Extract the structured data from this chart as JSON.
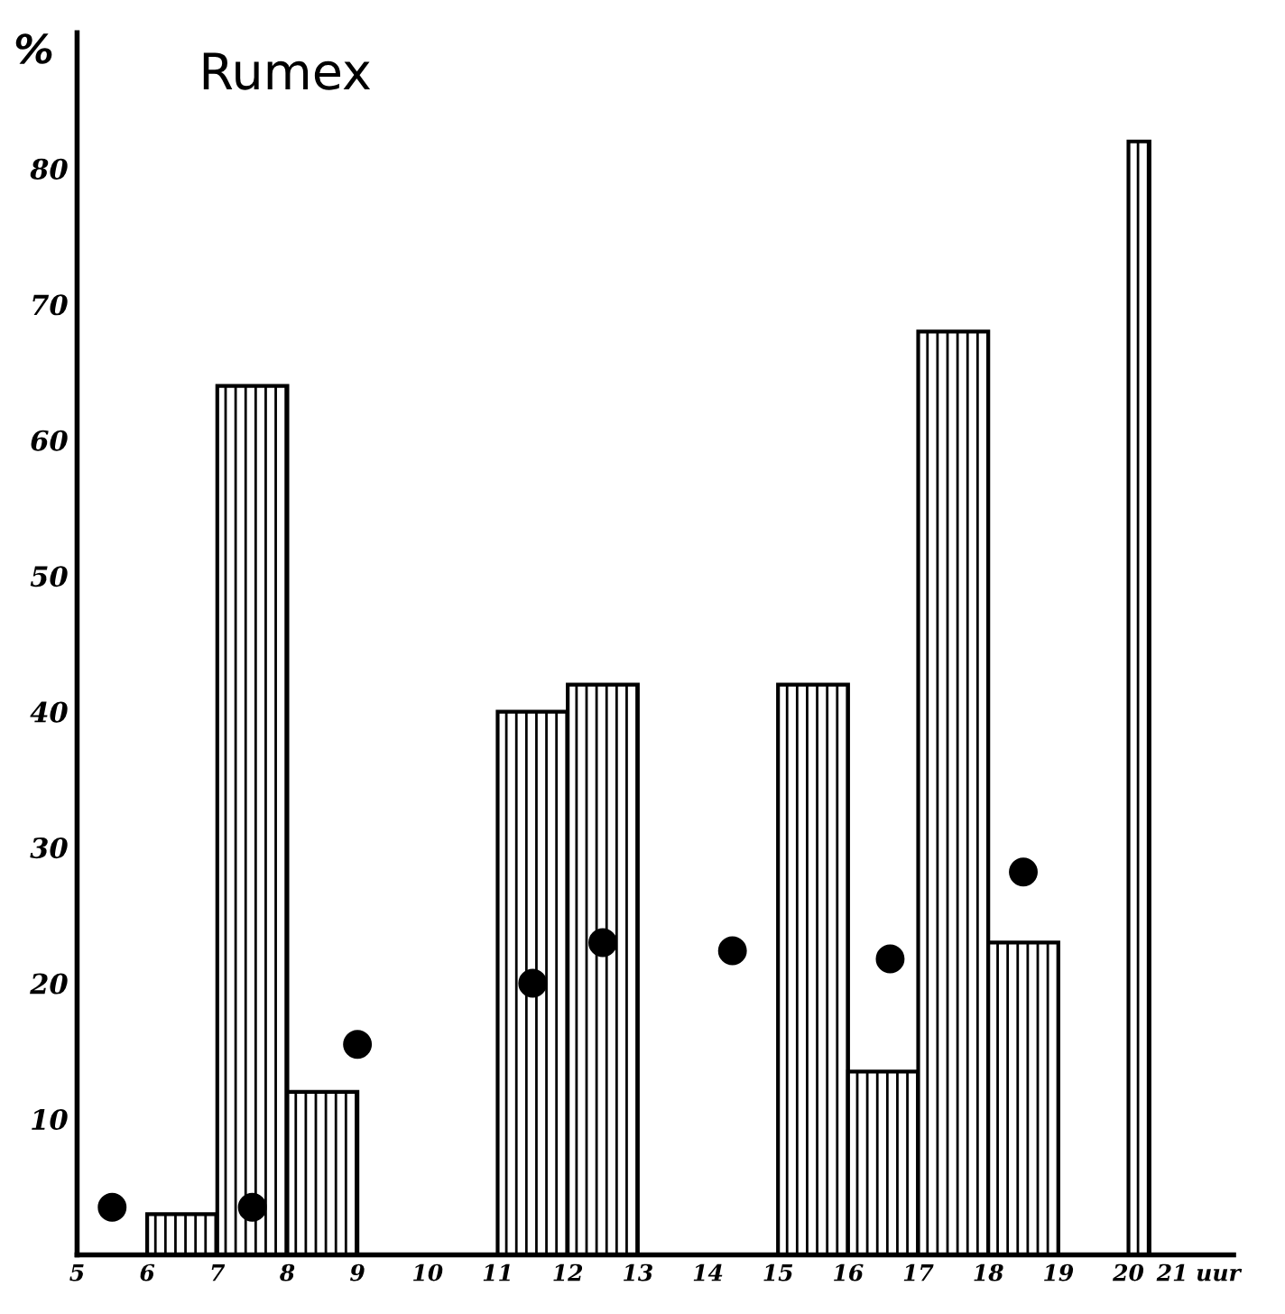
{
  "chart_data": {
    "type": "histogram",
    "title": "Rumex",
    "ylabel": "%",
    "bins": [
      6,
      7,
      8,
      9,
      11,
      12,
      13,
      15,
      16,
      17,
      18,
      19,
      20,
      20.3
    ],
    "values": [
      3,
      64,
      12,
      0,
      40,
      42,
      0,
      42,
      13.5,
      68,
      23,
      0,
      82
    ],
    "color": "#000000",
    "series": [
      {
        "type": "scatter",
        "x": [
          5.5,
          7.5,
          9,
          11.5,
          12.5,
          14.35,
          16.6,
          18.5
        ],
        "values": [
          3.5,
          3.5,
          15.5,
          20,
          23,
          22.4,
          21.8,
          28.2
        ],
        "color": "#000000"
      }
    ],
    "xlim": [
      5,
      21.5
    ],
    "ylim": [
      0,
      90
    ],
    "xticks": [
      5,
      6,
      7,
      8,
      9,
      10,
      11,
      12,
      13,
      14,
      15,
      16,
      17,
      18,
      19,
      20,
      {
        "value": 21,
        "label": "21 uur"
      }
    ],
    "yticks": [
      10,
      20,
      30,
      40,
      50,
      60,
      70,
      80
    ],
    "grid": false,
    "legend": false,
    "marker": "circle"
  }
}
